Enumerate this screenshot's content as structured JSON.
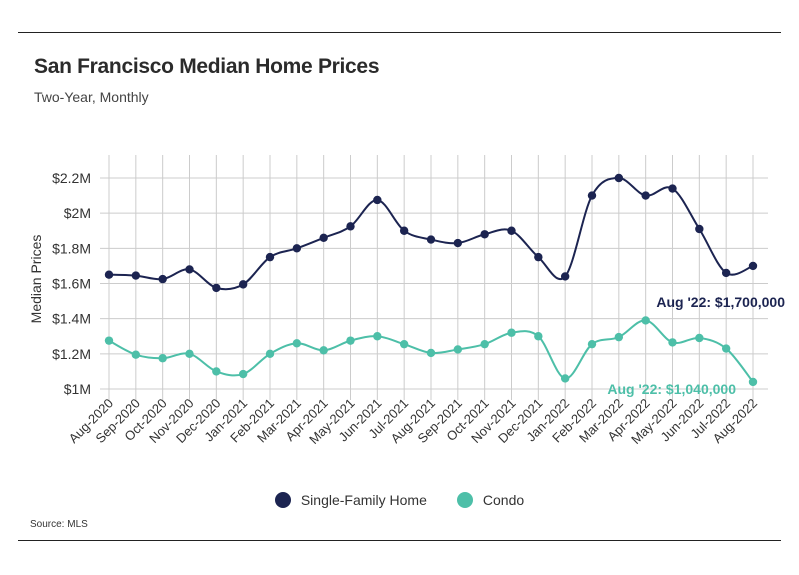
{
  "title": "San Francisco Median Home Prices",
  "subtitle": "Two-Year, Monthly",
  "source": "Source:  MLS",
  "colors": {
    "single_family": "#1c2451",
    "condo": "#4dbfa8",
    "grid": "#cccccc"
  },
  "chart_data": {
    "type": "line",
    "title": "San Francisco Median Home Prices",
    "subtitle": "Two-Year, Monthly",
    "xlabel": "",
    "ylabel": "Median Prices",
    "ylim": [
      1000000,
      2200000
    ],
    "yticks": [
      1000000,
      1200000,
      1400000,
      1600000,
      1800000,
      2000000,
      2200000
    ],
    "ytick_labels": [
      "$1M",
      "$1.2M",
      "$1.4M",
      "$1.6M",
      "$1.8M",
      "$2M",
      "$2.2M"
    ],
    "grid": true,
    "legend": "bottom-center",
    "categories": [
      "Aug-2020",
      "Sep-2020",
      "Oct-2020",
      "Nov-2020",
      "Dec-2020",
      "Jan-2021",
      "Feb-2021",
      "Mar-2021",
      "Apr-2021",
      "May-2021",
      "Jun-2021",
      "Jul-2021",
      "Aug-2021",
      "Sep-2021",
      "Oct-2021",
      "Nov-2021",
      "Dec-2021",
      "Jan-2022",
      "Feb-2022",
      "Mar-2022",
      "Apr-2022",
      "May-2022",
      "Jun-2022",
      "Jul-2022",
      "Aug-2022"
    ],
    "series": [
      {
        "name": "Single-Family Home",
        "color": "#1c2451",
        "values": [
          1650000,
          1645000,
          1625000,
          1680000,
          1575000,
          1595000,
          1750000,
          1800000,
          1860000,
          1925000,
          2075000,
          1900000,
          1850000,
          1830000,
          1880000,
          1900000,
          1750000,
          1640000,
          2100000,
          2200000,
          2100000,
          2140000,
          1910000,
          1660000,
          1700000
        ],
        "annotation": "Aug '22: $1,700,000"
      },
      {
        "name": "Condo",
        "color": "#4dbfa8",
        "values": [
          1275000,
          1195000,
          1175000,
          1200000,
          1100000,
          1085000,
          1200000,
          1260000,
          1220000,
          1275000,
          1300000,
          1255000,
          1205000,
          1225000,
          1255000,
          1320000,
          1300000,
          1060000,
          1255000,
          1295000,
          1390000,
          1265000,
          1290000,
          1230000,
          1040000
        ],
        "annotation": "Aug '22: $1,040,000"
      }
    ]
  }
}
